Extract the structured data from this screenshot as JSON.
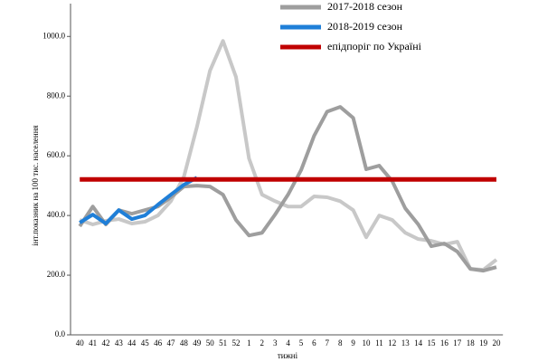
{
  "chart_data": {
    "type": "line",
    "y_label": "інт.показник на 100 тис. населення",
    "x_label": "тижні",
    "categories": [
      "40",
      "41",
      "42",
      "43",
      "44",
      "45",
      "46",
      "47",
      "48",
      "49",
      "50",
      "51",
      "52",
      "1",
      "2",
      "3",
      "4",
      "5",
      "6",
      "7",
      "8",
      "9",
      "10",
      "11",
      "12",
      "13",
      "14",
      "15",
      "16",
      "17",
      "18",
      "19",
      "20"
    ],
    "series": [
      {
        "name": null,
        "color": "#c8c8c8",
        "values": [
          385,
          370,
          382,
          388,
          373,
          379,
          400,
          448,
          530,
          697,
          885,
          985,
          864,
          591,
          470,
          448,
          430,
          430,
          464,
          461,
          448,
          418,
          327,
          400,
          385,
          342,
          321,
          315,
          303,
          312,
          221,
          218,
          252
        ]
      },
      {
        "name": "2017-2018 сезон",
        "color": "#9e9e9e",
        "values": [
          364,
          430,
          370,
          418,
          406,
          418,
          430,
          461,
          497,
          500,
          497,
          470,
          385,
          333,
          342,
          403,
          470,
          552,
          667,
          748,
          764,
          727,
          555,
          567,
          515,
          424,
          370,
          297,
          306,
          279,
          221,
          215,
          227
        ]
      },
      {
        "name": "2018-2019 сезон",
        "color": "#1f7fd8",
        "values": [
          376,
          403,
          373,
          418,
          388,
          400,
          436,
          470,
          503,
          527,
          null,
          null,
          null,
          null,
          null,
          null,
          null,
          null,
          null,
          null,
          null,
          null,
          null,
          null,
          null,
          null,
          null,
          null,
          null,
          null,
          null,
          null,
          null
        ]
      },
      {
        "name": "епідпоріг по Україні",
        "color": "#c00000",
        "values": [
          521,
          521,
          521,
          521,
          521,
          521,
          521,
          521,
          521,
          521,
          521,
          521,
          521,
          521,
          521,
          521,
          521,
          521,
          521,
          521,
          521,
          521,
          521,
          521,
          521,
          521,
          521,
          521,
          521,
          521,
          521,
          521,
          521
        ]
      }
    ],
    "ylim": [
      0,
      1110
    ],
    "yticks": [
      {
        "value": 0,
        "label": "0.0"
      },
      {
        "value": 200,
        "label": "200.0"
      },
      {
        "value": 400,
        "label": "400.0"
      },
      {
        "value": 600,
        "label": "600.0"
      },
      {
        "value": 800,
        "label": "800.0"
      },
      {
        "value": 1000,
        "label": "1000.0"
      }
    ]
  }
}
